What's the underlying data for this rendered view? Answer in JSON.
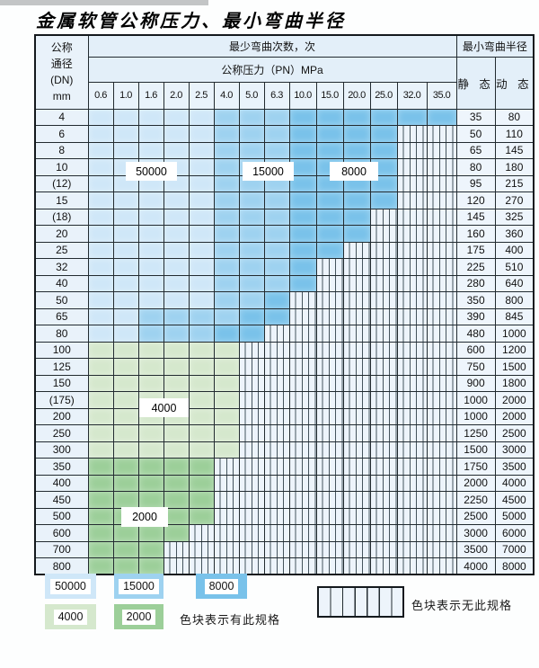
{
  "title": "金属软管公称压力、最小弯曲半径",
  "colors": {
    "c50000": "#cfe7f8",
    "c15000": "#9ed2f0",
    "c8000": "#79c2ea",
    "c4000": "#d5e8cd",
    "c2000": "#9ccf99",
    "hatch_bg": "#edf4fb",
    "border": "#222b30"
  },
  "table": {
    "corner_header": "公称\n通径\n(DN)\nmm",
    "bend_cycles_header": "最少弯曲次数，次",
    "pressure_header": "公称压力（PN）MPa",
    "radius_header": "最小弯曲半径",
    "static_header": "静 态",
    "dynamic_header": "动 态",
    "pressure_columns": [
      "0.6",
      "1.0",
      "1.6",
      "2.0",
      "2.5",
      "4.0",
      "5.0",
      "6.3",
      "10.0",
      "15.0",
      "20.0",
      "25.0",
      "32.0",
      "35.0"
    ],
    "rows": [
      {
        "dn": "4",
        "zones": [
          [
            "50000",
            5
          ],
          [
            "15000",
            3
          ],
          [
            "8000",
            6
          ]
        ],
        "static": "35",
        "dynamic": "80"
      },
      {
        "dn": "6",
        "zones": [
          [
            "50000",
            5
          ],
          [
            "15000",
            3
          ],
          [
            "8000",
            4
          ]
        ],
        "static": "50",
        "dynamic": "110"
      },
      {
        "dn": "8",
        "zones": [
          [
            "50000",
            5
          ],
          [
            "15000",
            3
          ],
          [
            "8000",
            4
          ]
        ],
        "static": "65",
        "dynamic": "145"
      },
      {
        "dn": "10",
        "zones": [
          [
            "50000",
            5
          ],
          [
            "15000",
            3
          ],
          [
            "8000",
            4
          ]
        ],
        "static": "80",
        "dynamic": "180"
      },
      {
        "dn": "(12)",
        "zones": [
          [
            "50000",
            5
          ],
          [
            "15000",
            3
          ],
          [
            "8000",
            4
          ]
        ],
        "static": "95",
        "dynamic": "215"
      },
      {
        "dn": "15",
        "zones": [
          [
            "50000",
            5
          ],
          [
            "15000",
            3
          ],
          [
            "8000",
            4
          ]
        ],
        "static": "120",
        "dynamic": "270"
      },
      {
        "dn": "(18)",
        "zones": [
          [
            "50000",
            5
          ],
          [
            "15000",
            3
          ],
          [
            "8000",
            3
          ]
        ],
        "static": "145",
        "dynamic": "325"
      },
      {
        "dn": "20",
        "zones": [
          [
            "50000",
            5
          ],
          [
            "15000",
            3
          ],
          [
            "8000",
            3
          ]
        ],
        "static": "160",
        "dynamic": "360"
      },
      {
        "dn": "25",
        "zones": [
          [
            "50000",
            5
          ],
          [
            "15000",
            3
          ],
          [
            "8000",
            2
          ]
        ],
        "static": "175",
        "dynamic": "400"
      },
      {
        "dn": "32",
        "zones": [
          [
            "50000",
            5
          ],
          [
            "15000",
            3
          ],
          [
            "8000",
            1
          ]
        ],
        "static": "225",
        "dynamic": "510"
      },
      {
        "dn": "40",
        "zones": [
          [
            "50000",
            5
          ],
          [
            "15000",
            3
          ],
          [
            "8000",
            1
          ]
        ],
        "static": "280",
        "dynamic": "640"
      },
      {
        "dn": "50",
        "zones": [
          [
            "50000",
            5
          ],
          [
            "15000",
            2
          ],
          [
            "8000",
            1
          ]
        ],
        "static": "350",
        "dynamic": "800"
      },
      {
        "dn": "65",
        "zones": [
          [
            "50000",
            2
          ],
          [
            "15000",
            4
          ],
          [
            "8000",
            2
          ]
        ],
        "static": "390",
        "dynamic": "845"
      },
      {
        "dn": "80",
        "zones": [
          [
            "50000",
            2
          ],
          [
            "15000",
            3
          ],
          [
            "8000",
            2
          ]
        ],
        "static": "480",
        "dynamic": "1000"
      },
      {
        "dn": "100",
        "zones": [
          [
            "4000",
            6
          ]
        ],
        "static": "600",
        "dynamic": "1200"
      },
      {
        "dn": "125",
        "zones": [
          [
            "4000",
            6
          ]
        ],
        "static": "750",
        "dynamic": "1500"
      },
      {
        "dn": "150",
        "zones": [
          [
            "4000",
            6
          ]
        ],
        "static": "900",
        "dynamic": "1800"
      },
      {
        "dn": "(175)",
        "zones": [
          [
            "4000",
            6
          ]
        ],
        "static": "1000",
        "dynamic": "2000"
      },
      {
        "dn": "200",
        "zones": [
          [
            "4000",
            6
          ]
        ],
        "static": "1000",
        "dynamic": "2000"
      },
      {
        "dn": "250",
        "zones": [
          [
            "4000",
            6
          ]
        ],
        "static": "1250",
        "dynamic": "2500"
      },
      {
        "dn": "300",
        "zones": [
          [
            "4000",
            6
          ]
        ],
        "static": "1500",
        "dynamic": "3000"
      },
      {
        "dn": "350",
        "zones": [
          [
            "2000",
            5
          ]
        ],
        "static": "1750",
        "dynamic": "3500"
      },
      {
        "dn": "400",
        "zones": [
          [
            "2000",
            5
          ]
        ],
        "static": "2000",
        "dynamic": "4000"
      },
      {
        "dn": "450",
        "zones": [
          [
            "2000",
            5
          ]
        ],
        "static": "2250",
        "dynamic": "4500"
      },
      {
        "dn": "500",
        "zones": [
          [
            "2000",
            5
          ]
        ],
        "static": "2500",
        "dynamic": "5000"
      },
      {
        "dn": "600",
        "zones": [
          [
            "2000",
            4
          ]
        ],
        "static": "3000",
        "dynamic": "6000"
      },
      {
        "dn": "700",
        "zones": [
          [
            "2000",
            3
          ]
        ],
        "static": "3500",
        "dynamic": "7000"
      },
      {
        "dn": "800",
        "zones": [
          [
            "2000",
            3
          ]
        ],
        "static": "4000",
        "dynamic": "8000"
      }
    ]
  },
  "overlay_labels": {
    "l50000": "50000",
    "l15000": "15000",
    "l8000": "8000",
    "l4000": "4000",
    "l2000": "2000"
  },
  "legend": {
    "items": [
      {
        "key": "50000",
        "label": "50000"
      },
      {
        "key": "15000",
        "label": "15000"
      },
      {
        "key": "8000",
        "label": "8000"
      },
      {
        "key": "4000",
        "label": "4000"
      },
      {
        "key": "2000",
        "label": "2000"
      }
    ],
    "has_spec_note": "色块表示有此规格",
    "no_spec_note": "色块表示无此规格"
  }
}
